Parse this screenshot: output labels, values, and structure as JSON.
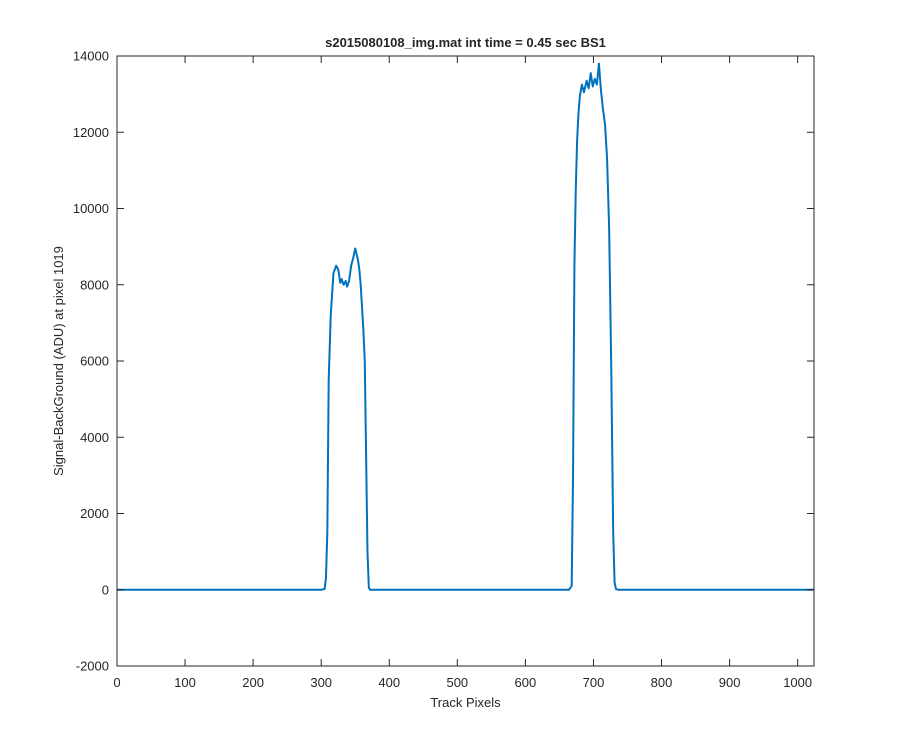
{
  "chart_data": {
    "type": "line",
    "title": "s2015080108_img.mat int time = 0.45 sec   BS1",
    "xlabel": "Track Pixels",
    "ylabel": "Signal-BackGround (ADU) at pixel 1019",
    "xlim": [
      0,
      1024
    ],
    "ylim": [
      -2000,
      14000
    ],
    "xticks": [
      "0",
      "100",
      "200",
      "300",
      "400",
      "500",
      "600",
      "700",
      "800",
      "900",
      "1000"
    ],
    "yticks": [
      "-2000",
      "0",
      "2000",
      "4000",
      "6000",
      "8000",
      "10000",
      "12000",
      "14000"
    ],
    "grid": false,
    "line_color": "#0072bd",
    "series": [
      {
        "x": [
          0,
          300,
          305,
          307,
          309,
          311,
          314,
          318,
          322,
          325,
          328,
          330,
          333,
          336,
          338,
          341,
          344,
          347,
          350,
          352,
          354,
          356,
          358,
          360,
          362,
          364,
          366,
          368,
          370,
          372,
          374,
          380,
          664,
          668,
          670,
          672,
          674,
          676,
          678,
          680,
          683,
          686,
          690,
          693,
          696,
          699,
          702,
          705,
          708,
          711,
          714,
          717,
          720,
          723,
          726,
          729,
          731,
          733,
          736,
          740,
          1024
        ],
        "y": [
          0,
          0,
          20,
          300,
          1500,
          5500,
          7200,
          8300,
          8500,
          8400,
          8050,
          8150,
          8000,
          8100,
          7950,
          8100,
          8500,
          8700,
          8950,
          8800,
          8650,
          8400,
          8000,
          7400,
          6800,
          6000,
          3500,
          1000,
          50,
          0,
          0,
          0,
          0,
          100,
          3000,
          8500,
          10500,
          11800,
          12500,
          12950,
          13250,
          13050,
          13350,
          13150,
          13550,
          13200,
          13400,
          13250,
          13800,
          13100,
          12600,
          12200,
          11300,
          9500,
          6000,
          1500,
          200,
          20,
          0,
          0,
          0
        ]
      }
    ]
  }
}
